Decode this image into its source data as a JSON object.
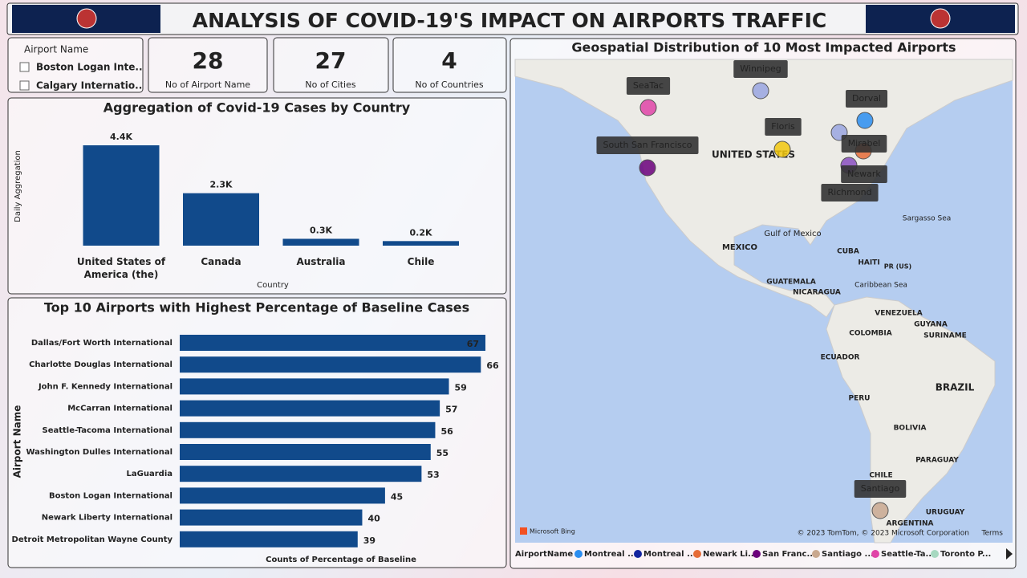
{
  "header": {
    "title": "ANALYSIS OF COVID-19'S IMPACT ON AIRPORTS TRAFFIC"
  },
  "slicer": {
    "title": "Airport Name",
    "items": [
      "Boston Logan Inte...",
      "Calgary Internatio..."
    ]
  },
  "kpis": [
    {
      "value": 28,
      "label": "No of Airport Name"
    },
    {
      "value": 27,
      "label": "No of  Cities"
    },
    {
      "value": 4,
      "label": "No of Countries"
    }
  ],
  "chart_data": [
    {
      "type": "bar",
      "title": "Aggregation of Covid-19 Cases by Country",
      "x_label": "Country",
      "y_label": "Daily Aggregation",
      "categories": [
        "United States of America (the)",
        "Canada",
        "Australia",
        "Chile"
      ],
      "values": [
        4400,
        2300,
        300,
        200
      ],
      "value_labels": [
        "4.4K",
        "2.3K",
        "0.3K",
        "0.2K"
      ],
      "color": "#114a8b",
      "ylim": [
        0,
        4400
      ]
    },
    {
      "type": "hbar",
      "title": "Top 10 Airports with Highest Percentage of Baseline Cases",
      "x_label": "Counts of Percentage of Baseline",
      "y_label": "Airport Name",
      "categories": [
        "Dallas/Fort Worth International",
        "Charlotte Douglas International",
        "John F. Kennedy International",
        "McCarran International",
        "Seattle-Tacoma International",
        "Washington Dulles International",
        "LaGuardia",
        "Boston Logan International",
        "Newark Liberty International",
        "Detroit Metropolitan Wayne County"
      ],
      "values": [
        67,
        66,
        59,
        57,
        56,
        55,
        53,
        45,
        40,
        39
      ],
      "color": "#114a8b",
      "xlim": [
        0,
        67
      ]
    }
  ],
  "map": {
    "title": "Geospatial Distribution of 10 Most Impacted Airports",
    "points": [
      {
        "label": "SeaTac",
        "color": "#e044a7"
      },
      {
        "label": "Winnipeg",
        "color": "#9aa6e0"
      },
      {
        "label": "Dorval",
        "color": "#2b8ef0"
      },
      {
        "label": "Floris",
        "color": "#f2c80f"
      },
      {
        "label": "South San Francisco",
        "color": "#6b007b"
      },
      {
        "label": "Mirabel",
        "color": "#e66c37"
      },
      {
        "label": "Newark",
        "color": "#8a4fc0"
      },
      {
        "label": "Richmond",
        "color": "#9aa6e0"
      },
      {
        "label": "Santiago",
        "color": "#c9a88f"
      }
    ],
    "places": [
      "UNITED STATES",
      "MEXICO",
      "Gulf of Mexico",
      "CUBA",
      "HAITI",
      "PR (US)",
      "Caribbean Sea",
      "Sargasso Sea",
      "GUATEMALA",
      "NICARAGUA",
      "VENEZUELA",
      "GUYANA",
      "SURINAME",
      "COLOMBIA",
      "ECUADOR",
      "PERU",
      "BRAZIL",
      "BOLIVIA",
      "PARAGUAY",
      "CHILE",
      "URUGUAY",
      "ARGENTINA"
    ],
    "legend_title": "AirportName",
    "legend": [
      {
        "name": "Montreal ...",
        "color": "#2b8ef0"
      },
      {
        "name": "Montreal ...",
        "color": "#12239e"
      },
      {
        "name": "Newark Li...",
        "color": "#e66c37"
      },
      {
        "name": "San Franc...",
        "color": "#6b007b"
      },
      {
        "name": "Santiago ...",
        "color": "#c9a88f"
      },
      {
        "name": "Seattle-Ta...",
        "color": "#e044a7"
      },
      {
        "name": "Toronto P...",
        "color": "#a6d8c0"
      }
    ],
    "attribution": "Microsoft Bing",
    "copyright": "© 2023 TomTom, © 2023 Microsoft Corporation",
    "terms": "Terms"
  }
}
